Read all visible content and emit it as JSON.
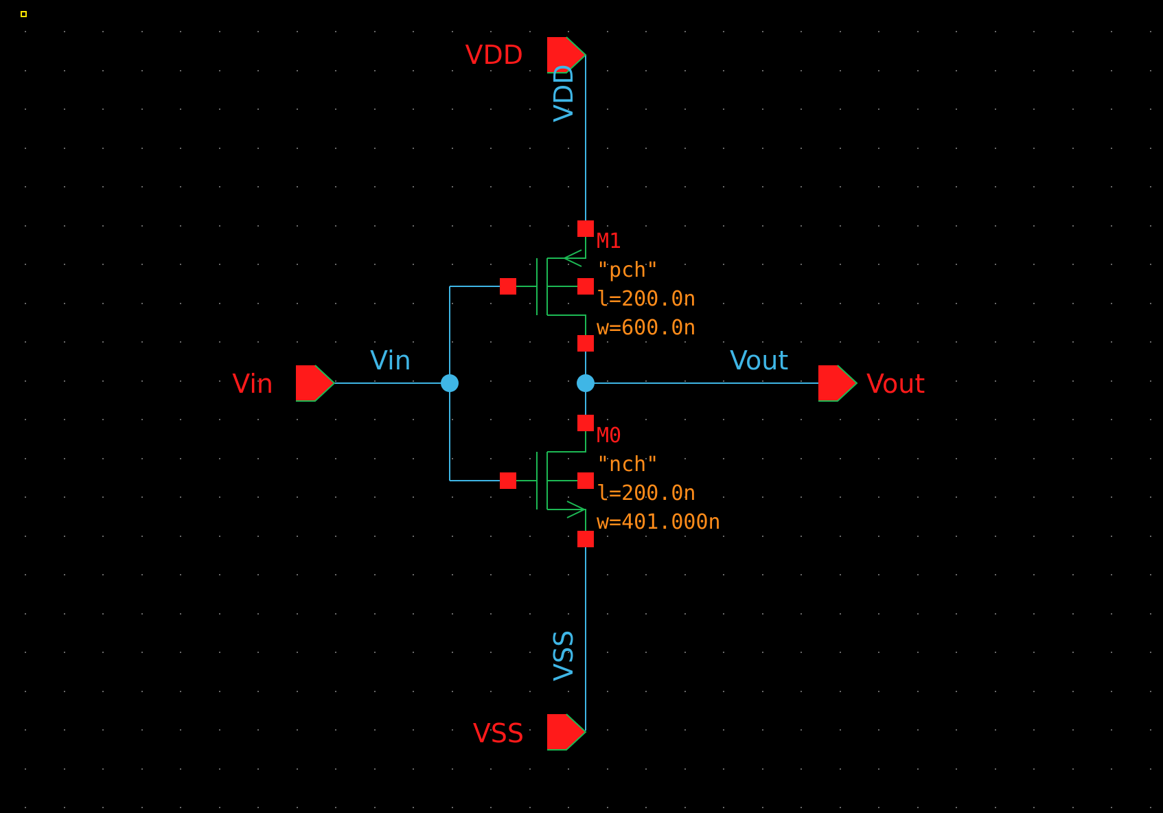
{
  "colors": {
    "background": "#000000",
    "wire": "#3fb6e6",
    "device": "#1db954",
    "pin": "#ff1a1a",
    "port_label": "#ff1a1a",
    "parameter": "#ff8c1a",
    "selection_marker": "#ffe600"
  },
  "ports": {
    "vdd": "VDD",
    "vss": "VSS",
    "vin": "Vin",
    "vout": "Vout"
  },
  "nets": {
    "vdd": "VDD",
    "vss": "VSS",
    "vin": "Vin",
    "vout": "Vout"
  },
  "instances": {
    "pmos": {
      "name": "M1",
      "model": "\"pch\"",
      "length": "l=200.0n",
      "width": "w=600.0n"
    },
    "nmos": {
      "name": "M0",
      "model": "\"nch\"",
      "length": "l=200.0n",
      "width": "w=401.000n"
    }
  }
}
